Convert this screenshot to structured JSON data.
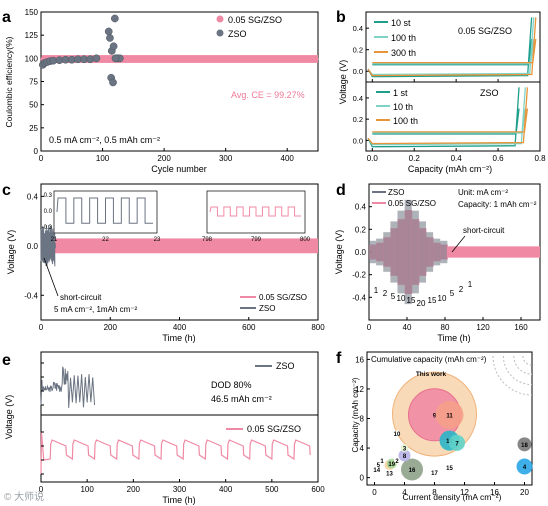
{
  "colors": {
    "pink": "#f08aa4",
    "pinkLight": "#f6b9c8",
    "gray": "#6b7482",
    "teal": "#1f9e8c",
    "tealLight": "#7fd3c6",
    "orange": "#e8943a",
    "peach": "#f5c89a",
    "avg": "#f07a96"
  },
  "watermark": "© 大师说",
  "panels": {
    "a": {
      "label": "a",
      "legend": [
        "0.05 SG/ZSO",
        "ZSO"
      ],
      "annotation": "Avg. CE = 99.27%",
      "condition": "0.5 mA cm⁻², 0.5 mAh cm⁻²"
    },
    "b": {
      "label": "b",
      "top_title": "0.05 SG/ZSO",
      "bottom_title": "ZSO",
      "legend_top": [
        "10 st",
        "100 th",
        "300 th"
      ],
      "legend_bottom": [
        "1 st",
        "10 th",
        "100 th"
      ]
    },
    "c": {
      "label": "c",
      "legend": [
        "0.05 SG/ZSO",
        "ZSO"
      ],
      "annotation": "short-circuit",
      "condition": "5 mA cm⁻², 1mAh cm⁻²"
    },
    "d": {
      "label": "d",
      "legend": [
        "ZSO",
        "0.05 SG/ZSO"
      ],
      "unit_note": "Unit: mA cm⁻²",
      "capacity_note": "Capacity: 1 mAh cm⁻²",
      "annotation": "short-circuit",
      "rate_labels": [
        "1",
        "2",
        "5",
        "10",
        "15",
        "20",
        "15",
        "10",
        "5",
        "2",
        "1"
      ]
    },
    "e": {
      "label": "e",
      "legend_top": "ZSO",
      "legend_bottom": "0.05 SG/ZSO",
      "dod": "DOD 80%",
      "capacity": "46.5 mAh cm⁻²"
    },
    "f": {
      "label": "f",
      "title": "Cumulative capacity (mAh cm⁻²)",
      "this_work": "This work"
    }
  },
  "chart_data": [
    {
      "panel": "a",
      "type": "scatter",
      "xlabel": "Cycle number",
      "ylabel": "Coulombic efficiency(%)",
      "xlim": [
        0,
        450
      ],
      "ylim": [
        0,
        150
      ],
      "xticks": [
        0,
        100,
        200,
        300,
        400
      ],
      "yticks": [
        0,
        25,
        50,
        75,
        100,
        125,
        150
      ],
      "series": [
        {
          "name": "0.05 SG/ZSO",
          "x_range": [
            1,
            450
          ],
          "value": 99.27
        },
        {
          "name": "ZSO",
          "x": [
            3,
            6,
            10,
            15,
            20,
            30,
            40,
            50,
            60,
            70,
            80,
            90,
            110,
            112,
            115,
            118,
            120,
            122,
            125,
            128,
            114,
            117,
            121
          ],
          "y": [
            93,
            95,
            96,
            97,
            97.5,
            98,
            98.5,
            98.5,
            99,
            99,
            99,
            100,
            129,
            122,
            108,
            113,
            143,
            100,
            100,
            100,
            79,
            74,
            100
          ]
        }
      ]
    },
    {
      "panel": "b",
      "type": "line",
      "xlabel": "Capacity (mAh cm⁻²)",
      "ylabel": "Voltage (V)",
      "xlim": [
        -0.03,
        0.8
      ],
      "xticks": [
        0.0,
        0.2,
        0.4,
        0.6,
        0.8
      ],
      "yticks": [
        0.0,
        0.2,
        0.4
      ],
      "subplots": [
        {
          "title": "0.05 SG/ZSO",
          "series": [
            {
              "name": "10 st",
              "plateau": -0.05,
              "end": 0.76
            },
            {
              "name": "100 th",
              "plateau": -0.03,
              "end": 0.77
            },
            {
              "name": "300 th",
              "plateau": -0.04,
              "end": 0.78
            }
          ]
        },
        {
          "title": "ZSO",
          "series": [
            {
              "name": "1 st",
              "plateau": -0.06,
              "end": 0.7
            },
            {
              "name": "10 th",
              "plateau": -0.04,
              "end": 0.73
            },
            {
              "name": "100 th",
              "plateau": -0.03,
              "end": 0.74
            }
          ]
        }
      ]
    },
    {
      "panel": "c",
      "type": "line",
      "xlabel": "Time (h)",
      "ylabel": "Voltage (V)",
      "xlim": [
        0,
        800
      ],
      "ylim": [
        -0.6,
        0.5
      ],
      "xticks": [
        0,
        200,
        400,
        600,
        800
      ],
      "yticks": [
        -0.4,
        0.0,
        0.4
      ],
      "series": [
        {
          "name": "0.05 SG/ZSO",
          "x_range": [
            0,
            800
          ],
          "amplitude": 0.06
        },
        {
          "name": "ZSO",
          "x_range": [
            0,
            40
          ],
          "amplitude": 0.15,
          "short_circuit_at": 40
        }
      ],
      "insets": [
        {
          "xlim": [
            21,
            23
          ],
          "xticks": [
            21,
            22,
            23
          ],
          "yticks": [
            -0.3,
            0.0,
            0.3
          ]
        },
        {
          "xlim": [
            798,
            800
          ],
          "xticks": [
            798,
            799,
            800
          ]
        }
      ]
    },
    {
      "panel": "d",
      "type": "line",
      "xlabel": "Time (h)",
      "ylabel": "Voltage (V)",
      "xlim": [
        0,
        180
      ],
      "ylim": [
        -0.6,
        0.6
      ],
      "xticks": [
        0,
        40,
        80,
        120,
        160
      ],
      "yticks": [
        -0.4,
        -0.2,
        0.0,
        0.2,
        0.4
      ],
      "rates": [
        1,
        2,
        5,
        10,
        15,
        20,
        15,
        10,
        5,
        2,
        1
      ],
      "series": [
        {
          "name": "ZSO",
          "x_range": [
            0,
            95
          ],
          "short_circuit_at": 95
        },
        {
          "name": "0.05 SG/ZSO",
          "x_range": [
            0,
            180
          ]
        }
      ]
    },
    {
      "panel": "e",
      "type": "line",
      "xlabel": "Time (h)",
      "ylabel": "Voltage (V)",
      "xlim": [
        0,
        600
      ],
      "xticks": [
        0,
        100,
        200,
        300,
        400,
        500,
        600
      ],
      "series": [
        {
          "name": "ZSO",
          "x_range": [
            0,
            115
          ]
        },
        {
          "name": "0.05 SG/ZSO",
          "x_range": [
            0,
            600
          ],
          "cycle_period_h": 50
        }
      ]
    },
    {
      "panel": "f",
      "type": "scatter",
      "xlabel": "Current density (mA cm⁻²)",
      "ylabel": "Capacity (mAh cm⁻²)",
      "xlim": [
        -1,
        21
      ],
      "ylim": [
        -1,
        17
      ],
      "xticks": [
        0,
        4,
        8,
        12,
        16,
        20
      ],
      "yticks": [
        0,
        4,
        8,
        12,
        16
      ],
      "points": [
        {
          "label": "This work",
          "x": 8,
          "y": 8,
          "size": "largest"
        },
        {
          "label": "1",
          "x": 1,
          "y": 2.3
        },
        {
          "label": "2",
          "x": 3,
          "y": 2.3
        },
        {
          "label": "3",
          "x": 4,
          "y": 4
        },
        {
          "label": "4",
          "x": 20,
          "y": 1.5
        },
        {
          "label": "5",
          "x": 0.5,
          "y": 1.8
        },
        {
          "label": "6",
          "x": 2,
          "y": 1.7
        },
        {
          "label": "7",
          "x": 11,
          "y": 4.7
        },
        {
          "label": "8",
          "x": 4,
          "y": 3
        },
        {
          "label": "9",
          "x": 8,
          "y": 8.5
        },
        {
          "label": "10",
          "x": 3,
          "y": 6
        },
        {
          "label": "11",
          "x": 10,
          "y": 8.5
        },
        {
          "label": "12",
          "x": 10,
          "y": 5
        },
        {
          "label": "13",
          "x": 2,
          "y": 0.6
        },
        {
          "label": "14",
          "x": 0.3,
          "y": 1.1
        },
        {
          "label": "15",
          "x": 10,
          "y": 1.4
        },
        {
          "label": "16",
          "x": 5,
          "y": 1.1
        },
        {
          "label": "17",
          "x": 8,
          "y": 0.7
        },
        {
          "label": "18",
          "x": 20,
          "y": 4.5
        },
        {
          "label": "19",
          "x": 2.3,
          "y": 1.9
        }
      ]
    }
  ]
}
